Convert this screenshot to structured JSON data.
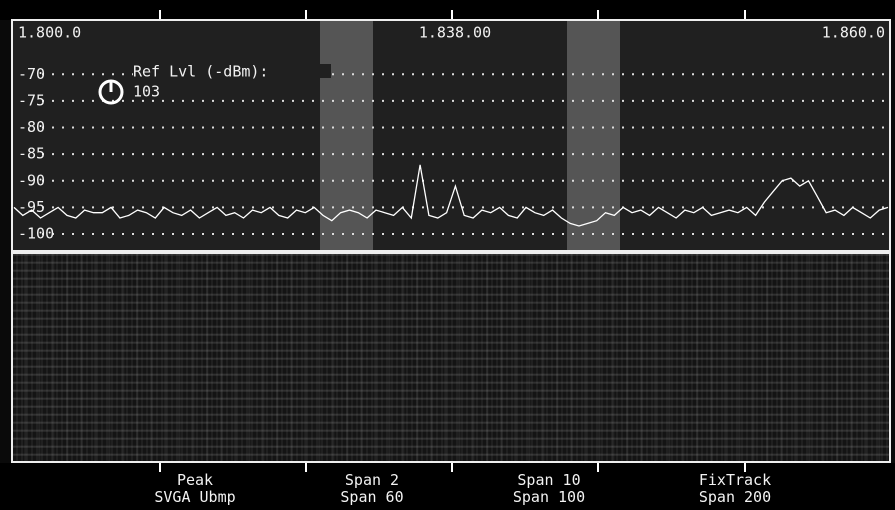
{
  "spectrum": {
    "freq_labels": [
      "1.800.0",
      "1.838.00",
      "1.860.0"
    ],
    "ref_level_label": "Ref Lvl (-dBm):",
    "ref_level_value": "103",
    "ylim": [
      -103,
      -60
    ],
    "yticks": [
      -70,
      -75,
      -80,
      -85,
      -90,
      -95,
      -100
    ],
    "grid": true,
    "trace_color": "#ffffff",
    "trace": [
      -95,
      -96.5,
      -95.5,
      -97,
      -96,
      -95,
      -96.5,
      -97,
      -95.5,
      -96,
      -96,
      -95,
      -97,
      -96.5,
      -95.5,
      -96,
      -97,
      -95,
      -96,
      -96.5,
      -95.5,
      -97,
      -96,
      -95,
      -96.5,
      -96,
      -97,
      -95.5,
      -96,
      -95,
      -96.5,
      -97,
      -95.5,
      -96,
      -95,
      -96.5,
      -97.5,
      -96,
      -95.5,
      -96,
      -97,
      -95.5,
      -96,
      -96.5,
      -95,
      -97,
      -87,
      -96.5,
      -97,
      -96,
      -91,
      -96.5,
      -97,
      -95.5,
      -96,
      -95,
      -96.5,
      -97,
      -95,
      -96,
      -96.5,
      -95.5,
      -97,
      -98,
      -98.5,
      -98,
      -97.5,
      -96,
      -96.5,
      -95,
      -96,
      -95.5,
      -96.5,
      -95,
      -96,
      -97,
      -95.5,
      -96,
      -95,
      -96.5,
      -96,
      -95.5,
      -96,
      -95,
      -96.5,
      -94,
      -92,
      -90,
      -89.5,
      -91,
      -90,
      -93,
      -96,
      -95.5,
      -96.5,
      -95,
      -96,
      -97,
      -95.5,
      -95
    ]
  },
  "buttons": [
    {
      "line1": "Peak",
      "line2": "SVGA Ubmp"
    },
    {
      "line1": "Span 2",
      "line2": "Span 60"
    },
    {
      "line1": "Span 10",
      "line2": "Span 100"
    },
    {
      "line1": "FixTrack",
      "line2": "Span 200"
    }
  ]
}
